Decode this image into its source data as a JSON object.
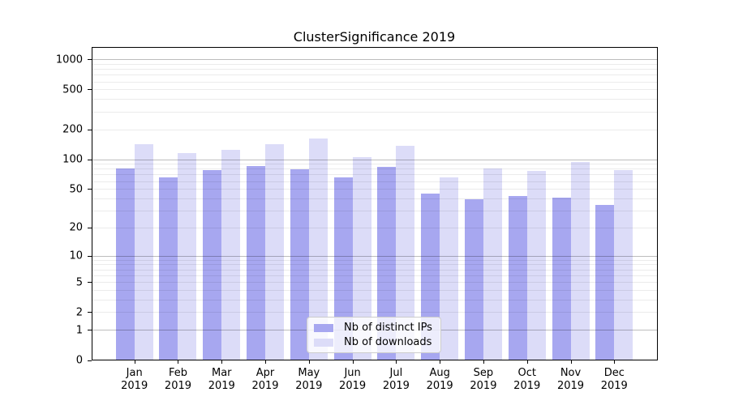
{
  "title": "ClusterSignificance 2019",
  "chart_data": {
    "type": "bar",
    "title": "ClusterSignificance 2019",
    "categories": [
      "Jan 2019",
      "Feb 2019",
      "Mar 2019",
      "Apr 2019",
      "May 2019",
      "Jun 2019",
      "Jul 2019",
      "Aug 2019",
      "Sep 2019",
      "Oct 2019",
      "Nov 2019",
      "Dec 2019"
    ],
    "series": [
      {
        "name": "Nb of distinct IPs",
        "color": "#a7a7f0",
        "values": [
          81,
          66,
          77,
          85,
          79,
          65,
          83,
          45,
          39,
          42,
          41,
          34
        ]
      },
      {
        "name": "Nb of downloads",
        "color": "#dcdcf8",
        "values": [
          141,
          115,
          124,
          141,
          160,
          105,
          137,
          66,
          81,
          76,
          94,
          78
        ]
      }
    ],
    "y_axis": {
      "scale": "log1p",
      "ticks": [
        0,
        1,
        2,
        5,
        10,
        20,
        50,
        100,
        200,
        500,
        1000
      ],
      "range": [
        0,
        1320
      ],
      "minor_gridlines": true
    },
    "xlabel": "",
    "ylabel": "",
    "grid": true,
    "legend_position": "lower center"
  }
}
